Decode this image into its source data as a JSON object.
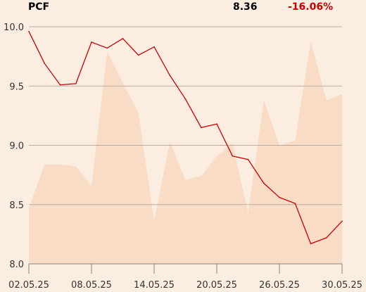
{
  "header": {
    "ticker": "PCF",
    "price": "8.36",
    "change": "-16.06%"
  },
  "colors": {
    "background": "#fcede1",
    "line": "#cc0000",
    "area": "#f8dcc6",
    "grid": "#b8aca2",
    "axis": "#8a8480",
    "change_text": "#cc0000"
  },
  "chart_data": {
    "type": "line",
    "title": "",
    "xlabel": "",
    "ylabel": "",
    "ylim": [
      8.0,
      10.0
    ],
    "yticks": [
      "10.0",
      "9.5",
      "9.0",
      "8.5",
      "8.0"
    ],
    "grid": true,
    "x": [
      "02.05.25",
      "05.05.25",
      "06.05.25",
      "07.05.25",
      "08.05.25",
      "09.05.25",
      "12.05.25",
      "13.05.25",
      "14.05.25",
      "15.05.25",
      "16.05.25",
      "19.05.25",
      "20.05.25",
      "21.05.25",
      "22.05.25",
      "23.05.25",
      "26.05.25",
      "27.05.25",
      "28.05.25",
      "29.05.25",
      "30.05.25"
    ],
    "xtick_labels": [
      "02.05.25",
      "08.05.25",
      "14.05.25",
      "20.05.25",
      "26.05.25",
      "30.05.25"
    ],
    "series": [
      {
        "kind": "line",
        "values": [
          9.96,
          9.69,
          9.51,
          9.52,
          9.87,
          9.82,
          9.9,
          9.76,
          9.83,
          9.59,
          9.39,
          9.15,
          9.18,
          8.91,
          8.88,
          8.68,
          8.56,
          8.51,
          8.17,
          8.22,
          8.36
        ]
      },
      {
        "kind": "area",
        "values": [
          8.47,
          8.84,
          8.84,
          8.82,
          8.66,
          9.79,
          9.53,
          9.27,
          8.36,
          9.03,
          8.71,
          8.74,
          8.91,
          9.02,
          8.43,
          9.38,
          9.0,
          9.04,
          9.88,
          9.38,
          9.43
        ]
      }
    ]
  }
}
